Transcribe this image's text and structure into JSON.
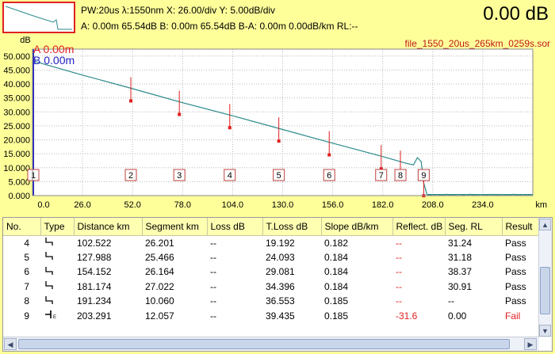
{
  "header": {
    "line1": "PW:20us  λ:1550nm  X: 26.00/div  Y: 5.00dB/div",
    "line2": "A: 0.00m  65.54dB  B: 0.00m  65.54dB  B-A: 0.00m  0.00dB/km  RL:--",
    "readout": "0.00 dB"
  },
  "plot": {
    "file": "file_1550_20us_265km_0259s.sor",
    "marker_a": "A 0.00m",
    "marker_b": "B 0.00m"
  },
  "colors": {
    "background": "#ffff9a",
    "trace": "#2b8a8a",
    "event": "#e02020",
    "marker_a": "#e02020",
    "marker_b": "#2020c0"
  },
  "chart_data": {
    "type": "line",
    "xlabel": "km",
    "ylabel": "dB",
    "xlim": [
      0,
      260
    ],
    "ylim": [
      0,
      52.5
    ],
    "x_ticks": [
      "0.0",
      "26.0",
      "52.0",
      "78.0",
      "104.0",
      "130.0",
      "156.0",
      "182.0",
      "208.0",
      "234.0"
    ],
    "y_ticks": [
      "50.000",
      "45.000",
      "40.000",
      "35.000",
      "30.000",
      "25.000",
      "20.000",
      "15.000",
      "10.000",
      "5.000",
      "0.000"
    ],
    "trace": [
      [
        0,
        48.3
      ],
      [
        26,
        43.2
      ],
      [
        52,
        38.3
      ],
      [
        78,
        33.3
      ],
      [
        104,
        28.6
      ],
      [
        130,
        23.7
      ],
      [
        156,
        18.8
      ],
      [
        182,
        14.0
      ],
      [
        194,
        11.6
      ],
      [
        198,
        11.0
      ],
      [
        200,
        13.6
      ],
      [
        202,
        12.2
      ],
      [
        203.3,
        4.5
      ],
      [
        205,
        0.4
      ],
      [
        260,
        0.4
      ]
    ],
    "events": [
      {
        "label": "1",
        "km": 0.0
      },
      {
        "label": "2",
        "km": 51.1
      },
      {
        "label": "3",
        "km": 76.3
      },
      {
        "label": "4",
        "km": 102.5
      },
      {
        "label": "5",
        "km": 128.0
      },
      {
        "label": "6",
        "km": 154.2
      },
      {
        "label": "7",
        "km": 181.2
      },
      {
        "label": "8",
        "km": 191.2
      },
      {
        "label": "9",
        "km": 203.3
      }
    ]
  },
  "table": {
    "columns": [
      "No.",
      "Type",
      "Distance km",
      "Segment km",
      "Loss dB",
      "T.Loss dB",
      "Slope dB/km",
      "Reflect. dB",
      "Seg. RL",
      "Result"
    ],
    "rows": [
      {
        "no": "4",
        "type": "step",
        "distance": "102.522",
        "segment": "26.201",
        "loss": "--",
        "tloss": "19.192",
        "slope": "0.182",
        "reflect": "--",
        "segrl": "31.24",
        "result": "Pass"
      },
      {
        "no": "5",
        "type": "step",
        "distance": "127.988",
        "segment": "25.466",
        "loss": "--",
        "tloss": "24.093",
        "slope": "0.184",
        "reflect": "--",
        "segrl": "31.18",
        "result": "Pass"
      },
      {
        "no": "6",
        "type": "step",
        "distance": "154.152",
        "segment": "26.164",
        "loss": "--",
        "tloss": "29.081",
        "slope": "0.184",
        "reflect": "--",
        "segrl": "38.37",
        "result": "Pass"
      },
      {
        "no": "7",
        "type": "step",
        "distance": "181.174",
        "segment": "27.022",
        "loss": "--",
        "tloss": "34.396",
        "slope": "0.184",
        "reflect": "--",
        "segrl": "30.91",
        "result": "Pass"
      },
      {
        "no": "8",
        "type": "step",
        "distance": "191.234",
        "segment": "10.060",
        "loss": "--",
        "tloss": "36.553",
        "slope": "0.185",
        "reflect": "--",
        "segrl": "--",
        "result": "Pass"
      },
      {
        "no": "9",
        "type": "end",
        "distance": "203.291",
        "segment": "12.057",
        "loss": "--",
        "tloss": "39.435",
        "slope": "0.185",
        "reflect": "-31.6",
        "segrl": "0.00",
        "result": "Fail"
      }
    ]
  }
}
